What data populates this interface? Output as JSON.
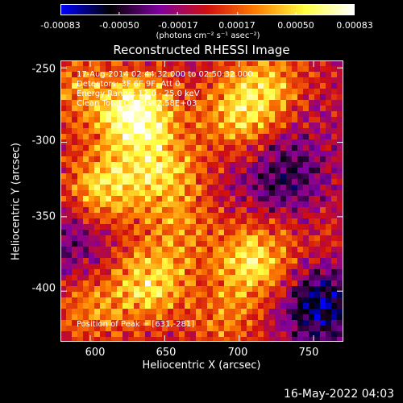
{
  "colorbar": {
    "tick_labels": [
      "-0.00083",
      "-0.00050",
      "-0.00017",
      "0.00017",
      "0.00050",
      "0.00083"
    ],
    "tick_values": [
      -0.00083,
      -0.0005,
      -0.00017,
      0.00017,
      0.0005,
      0.00083
    ],
    "units": "(photons cm⁻² s⁻¹ asec⁻²)",
    "colormap": [
      "#0000ff",
      "#000000",
      "#7f00a0",
      "#d01010",
      "#ff7f00",
      "#ffff40",
      "#ffffff"
    ]
  },
  "chart_data": {
    "type": "heatmap",
    "title": "Reconstructed RHESSI Image",
    "xlabel": "Heliocentric X (arcsec)",
    "ylabel": "Heliocentric Y (arcsec)",
    "xlim": [
      580,
      770
    ],
    "ylim": [
      -434,
      -245
    ],
    "x_ticks": [
      "600",
      "650",
      "700",
      "750"
    ],
    "x_tick_values": [
      600,
      650,
      700,
      750
    ],
    "y_ticks": [
      "-250",
      "-300",
      "-350",
      "-400"
    ],
    "y_tick_values": [
      -250,
      -300,
      -350,
      -400
    ],
    "peak_position": [
      631,
      -281
    ],
    "annotations": [
      "17-Aug-2014 02:44:32.000 to 02:50:32.000",
      "Detectors: 3F 6F 9F, Att 0",
      "Energy Range: 12.0 - 25.0 keV",
      "Clean    Total Counts: 2.58E+03",
      "Position of Peak = [631,-281]"
    ],
    "intensity_regions": [
      {
        "x": 631,
        "y": -281,
        "intensity": 1.0
      },
      {
        "x": 610,
        "y": -330,
        "intensity": 0.75
      },
      {
        "x": 650,
        "y": -320,
        "intensity": 0.7
      },
      {
        "x": 700,
        "y": -280,
        "intensity": 0.7
      },
      {
        "x": 720,
        "y": -260,
        "intensity": 0.6
      },
      {
        "x": 640,
        "y": -395,
        "intensity": 0.75
      },
      {
        "x": 710,
        "y": -380,
        "intensity": 0.8
      },
      {
        "x": 600,
        "y": -410,
        "intensity": 0.55
      },
      {
        "x": 660,
        "y": -360,
        "intensity": 0.5
      },
      {
        "x": 590,
        "y": -265,
        "intensity": 0.55
      },
      {
        "x": 750,
        "y": -360,
        "intensity": 0.35
      },
      {
        "x": 690,
        "y": -420,
        "intensity": 0.5
      },
      {
        "x": 740,
        "y": -300,
        "intensity": 0.2
      },
      {
        "x": 730,
        "y": -325,
        "intensity": -0.1
      },
      {
        "x": 755,
        "y": -410,
        "intensity": -0.3
      },
      {
        "x": 590,
        "y": -370,
        "intensity": 0.0
      }
    ]
  },
  "footer": {
    "date": "16-May-2022 04:03"
  }
}
